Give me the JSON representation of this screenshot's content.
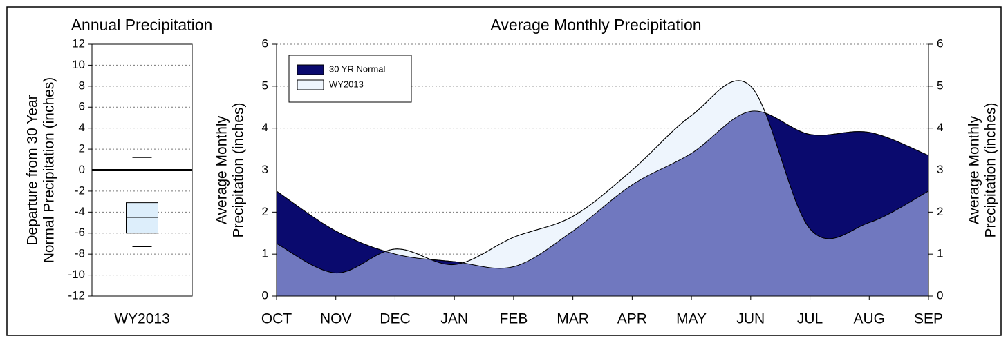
{
  "chart_data": [
    {
      "type": "box",
      "title": "Annual Precipitation",
      "ylabel": [
        "Departure from 30 Year",
        "Normal Precipitation (inches)"
      ],
      "categories": [
        "WY2013"
      ],
      "boxes": [
        {
          "whislo": -7.3,
          "q1": -6.0,
          "med": -4.5,
          "q3": -3.1,
          "whishi": 1.2
        }
      ],
      "color": "#ddeefb",
      "ylim": [
        -12,
        12
      ],
      "yticks": [
        -12,
        -10,
        -8,
        -6,
        -4,
        -2,
        0,
        2,
        4,
        6,
        8,
        10,
        12
      ],
      "reference_line": 0,
      "grid": true
    },
    {
      "type": "area",
      "title": "Average Monthly Precipitation",
      "ylabel": [
        "Average Monthly",
        "Precipitation (inches)"
      ],
      "y2label": [
        "Average Monthly",
        "Precipitation (inches)"
      ],
      "categories": [
        "OCT",
        "NOV",
        "DEC",
        "JAN",
        "FEB",
        "MAR",
        "APR",
        "MAY",
        "JUN",
        "JUL",
        "AUG",
        "SEP"
      ],
      "series": [
        {
          "name": "30 YR Normal",
          "color": "#0a0a6e",
          "values": [
            2.5,
            1.55,
            1.0,
            0.82,
            0.7,
            1.55,
            2.65,
            3.4,
            4.4,
            3.85,
            3.9,
            3.35
          ]
        },
        {
          "name": "WY2013",
          "color": "#eef5fd",
          "values": [
            1.25,
            0.55,
            1.12,
            0.75,
            1.4,
            1.9,
            3.0,
            4.3,
            5.0,
            1.6,
            1.75,
            2.5
          ]
        }
      ],
      "overlap_color": "#7078bf",
      "ylim": [
        0,
        6
      ],
      "yticks": [
        0,
        1,
        2,
        3,
        4,
        5,
        6
      ],
      "y2lim": [
        0,
        6
      ],
      "y2ticks": [
        0,
        1,
        2,
        3,
        4,
        5,
        6
      ],
      "legend": "upper left",
      "grid": true
    }
  ]
}
